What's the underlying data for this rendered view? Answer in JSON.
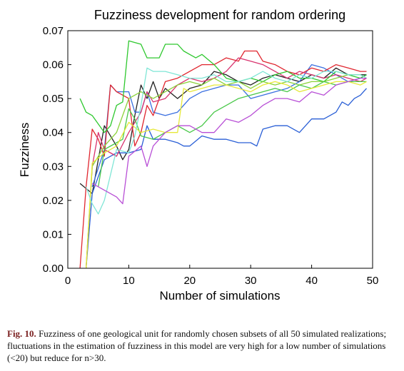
{
  "chart_data": {
    "type": "line",
    "title": "Fuzziness development for random ordering",
    "xlabel": "Number of simulations",
    "ylabel": "Fuzziness",
    "xlim": [
      0,
      50
    ],
    "ylim": [
      0,
      0.07
    ],
    "x_ticks": [
      "0",
      "10",
      "20",
      "30",
      "40",
      "50"
    ],
    "y_ticks": [
      "0.00",
      "0.01",
      "0.02",
      "0.03",
      "0.04",
      "0.05",
      "0.06",
      "0.07"
    ],
    "grid": false,
    "legend": false,
    "series": [
      {
        "color": "#222222",
        "points": [
          [
            2,
            0.025
          ],
          [
            4,
            0.022
          ],
          [
            6,
            0.042
          ],
          [
            8,
            0.036
          ],
          [
            9,
            0.032
          ],
          [
            10,
            0.035
          ],
          [
            11,
            0.045
          ],
          [
            12,
            0.054
          ],
          [
            13,
            0.05
          ],
          [
            14,
            0.055
          ],
          [
            15,
            0.05
          ],
          [
            16,
            0.053
          ],
          [
            18,
            0.05
          ],
          [
            20,
            0.053
          ],
          [
            22,
            0.054
          ],
          [
            24,
            0.058
          ],
          [
            26,
            0.057
          ],
          [
            28,
            0.055
          ],
          [
            30,
            0.054
          ],
          [
            32,
            0.056
          ],
          [
            34,
            0.057
          ],
          [
            36,
            0.056
          ],
          [
            38,
            0.055
          ],
          [
            40,
            0.057
          ],
          [
            42,
            0.056
          ],
          [
            44,
            0.059
          ],
          [
            46,
            0.057
          ],
          [
            48,
            0.057
          ],
          [
            49,
            0.057
          ]
        ]
      },
      {
        "color": "#2a5fd6",
        "points": [
          [
            3,
            0
          ],
          [
            4,
            0.022
          ],
          [
            6,
            0.032
          ],
          [
            8,
            0.034
          ],
          [
            10,
            0.034
          ],
          [
            12,
            0.035
          ],
          [
            13,
            0.042
          ],
          [
            14,
            0.038
          ],
          [
            16,
            0.038
          ],
          [
            18,
            0.037
          ],
          [
            19,
            0.036
          ],
          [
            20,
            0.036
          ],
          [
            22,
            0.039
          ],
          [
            24,
            0.038
          ],
          [
            26,
            0.038
          ],
          [
            28,
            0.037
          ],
          [
            30,
            0.037
          ],
          [
            31,
            0.036
          ],
          [
            32,
            0.041
          ],
          [
            34,
            0.042
          ],
          [
            36,
            0.042
          ],
          [
            38,
            0.04
          ],
          [
            40,
            0.044
          ],
          [
            42,
            0.044
          ],
          [
            44,
            0.046
          ],
          [
            45,
            0.049
          ],
          [
            46,
            0.048
          ],
          [
            47,
            0.05
          ],
          [
            48,
            0.051
          ],
          [
            49,
            0.053
          ]
        ]
      },
      {
        "color": "#3a6fe0",
        "points": [
          [
            4,
            0.024
          ],
          [
            6,
            0.035
          ],
          [
            7,
            0.054
          ],
          [
            8,
            0.052
          ],
          [
            10,
            0.052
          ],
          [
            11,
            0.046
          ],
          [
            12,
            0.046
          ],
          [
            13,
            0.052
          ],
          [
            14,
            0.046
          ],
          [
            16,
            0.045
          ],
          [
            18,
            0.046
          ],
          [
            20,
            0.05
          ],
          [
            22,
            0.052
          ],
          [
            24,
            0.053
          ],
          [
            26,
            0.054
          ],
          [
            28,
            0.054
          ],
          [
            30,
            0.05
          ],
          [
            32,
            0.051
          ],
          [
            34,
            0.052
          ],
          [
            36,
            0.053
          ],
          [
            38,
            0.055
          ],
          [
            40,
            0.06
          ],
          [
            42,
            0.059
          ],
          [
            44,
            0.057
          ],
          [
            46,
            0.055
          ],
          [
            48,
            0.056
          ],
          [
            49,
            0.057
          ]
        ]
      },
      {
        "color": "#e0262f",
        "points": [
          [
            2,
            0
          ],
          [
            3,
            0.024
          ],
          [
            4,
            0.041
          ],
          [
            5,
            0.038
          ],
          [
            6,
            0.033
          ],
          [
            7,
            0.054
          ],
          [
            8,
            0.052
          ],
          [
            10,
            0.05
          ],
          [
            11,
            0.036
          ],
          [
            12,
            0.04
          ],
          [
            13,
            0.048
          ],
          [
            14,
            0.045
          ],
          [
            16,
            0.055
          ],
          [
            18,
            0.056
          ],
          [
            20,
            0.058
          ],
          [
            22,
            0.06
          ],
          [
            24,
            0.06
          ],
          [
            26,
            0.062
          ],
          [
            28,
            0.061
          ],
          [
            29,
            0.064
          ],
          [
            31,
            0.064
          ],
          [
            32,
            0.061
          ],
          [
            34,
            0.06
          ],
          [
            36,
            0.058
          ],
          [
            38,
            0.057
          ],
          [
            40,
            0.059
          ],
          [
            42,
            0.058
          ],
          [
            44,
            0.06
          ],
          [
            46,
            0.059
          ],
          [
            48,
            0.058
          ],
          [
            49,
            0.058
          ]
        ]
      },
      {
        "color": "#d8336e",
        "points": [
          [
            3,
            0
          ],
          [
            4,
            0.03
          ],
          [
            5,
            0.04
          ],
          [
            6,
            0.035
          ],
          [
            8,
            0.033
          ],
          [
            10,
            0.04
          ],
          [
            12,
            0.046
          ],
          [
            13,
            0.052
          ],
          [
            14,
            0.049
          ],
          [
            16,
            0.05
          ],
          [
            18,
            0.054
          ],
          [
            20,
            0.056
          ],
          [
            22,
            0.055
          ],
          [
            24,
            0.056
          ],
          [
            26,
            0.058
          ],
          [
            28,
            0.062
          ],
          [
            30,
            0.061
          ],
          [
            32,
            0.06
          ],
          [
            34,
            0.058
          ],
          [
            36,
            0.056
          ],
          [
            38,
            0.058
          ],
          [
            40,
            0.057
          ],
          [
            42,
            0.056
          ],
          [
            44,
            0.057
          ],
          [
            46,
            0.056
          ],
          [
            48,
            0.055
          ],
          [
            49,
            0.056
          ]
        ]
      },
      {
        "color": "#2ec82e",
        "points": [
          [
            2,
            0.05
          ],
          [
            3,
            0.046
          ],
          [
            4,
            0.045
          ],
          [
            6,
            0.04
          ],
          [
            7,
            0.042
          ],
          [
            8,
            0.048
          ],
          [
            9,
            0.049
          ],
          [
            10,
            0.067
          ],
          [
            12,
            0.066
          ],
          [
            13,
            0.062
          ],
          [
            15,
            0.062
          ],
          [
            16,
            0.066
          ],
          [
            18,
            0.066
          ],
          [
            19,
            0.064
          ],
          [
            20,
            0.063
          ],
          [
            21,
            0.062
          ],
          [
            22,
            0.063
          ],
          [
            24,
            0.06
          ],
          [
            26,
            0.056
          ],
          [
            28,
            0.055
          ],
          [
            30,
            0.056
          ],
          [
            32,
            0.055
          ],
          [
            34,
            0.057
          ],
          [
            36,
            0.058
          ],
          [
            38,
            0.056
          ],
          [
            40,
            0.056
          ],
          [
            42,
            0.055
          ],
          [
            44,
            0.058
          ],
          [
            46,
            0.057
          ],
          [
            48,
            0.056
          ],
          [
            49,
            0.057
          ]
        ]
      },
      {
        "color": "#8bd23a",
        "points": [
          [
            3,
            0
          ],
          [
            4,
            0.03
          ],
          [
            6,
            0.036
          ],
          [
            8,
            0.04
          ],
          [
            10,
            0.05
          ],
          [
            12,
            0.052
          ],
          [
            14,
            0.05
          ],
          [
            16,
            0.052
          ],
          [
            18,
            0.054
          ],
          [
            20,
            0.055
          ],
          [
            22,
            0.054
          ],
          [
            24,
            0.056
          ],
          [
            26,
            0.054
          ],
          [
            28,
            0.055
          ],
          [
            30,
            0.053
          ],
          [
            32,
            0.055
          ],
          [
            34,
            0.054
          ],
          [
            36,
            0.055
          ],
          [
            38,
            0.054
          ],
          [
            40,
            0.055
          ],
          [
            42,
            0.055
          ],
          [
            44,
            0.056
          ],
          [
            46,
            0.057
          ],
          [
            48,
            0.057
          ],
          [
            49,
            0.056
          ]
        ]
      },
      {
        "color": "#49c849",
        "points": [
          [
            5,
            0.024
          ],
          [
            6,
            0.035
          ],
          [
            8,
            0.037
          ],
          [
            9,
            0.038
          ],
          [
            10,
            0.047
          ],
          [
            11,
            0.044
          ],
          [
            12,
            0.039
          ],
          [
            14,
            0.038
          ],
          [
            16,
            0.04
          ],
          [
            18,
            0.042
          ],
          [
            20,
            0.04
          ],
          [
            22,
            0.042
          ],
          [
            24,
            0.046
          ],
          [
            26,
            0.048
          ],
          [
            28,
            0.05
          ],
          [
            30,
            0.051
          ],
          [
            32,
            0.052
          ],
          [
            34,
            0.053
          ],
          [
            36,
            0.052
          ],
          [
            38,
            0.054
          ],
          [
            40,
            0.053
          ],
          [
            42,
            0.055
          ],
          [
            44,
            0.054
          ],
          [
            46,
            0.055
          ],
          [
            48,
            0.055
          ],
          [
            49,
            0.055
          ]
        ]
      },
      {
        "color": "#e6e838",
        "points": [
          [
            3,
            0
          ],
          [
            4,
            0.031
          ],
          [
            6,
            0.034
          ],
          [
            8,
            0.036
          ],
          [
            10,
            0.043
          ],
          [
            12,
            0.04
          ],
          [
            14,
            0.041
          ],
          [
            16,
            0.04
          ],
          [
            18,
            0.04
          ],
          [
            19,
            0.053
          ],
          [
            20,
            0.052
          ],
          [
            22,
            0.053
          ],
          [
            24,
            0.054
          ],
          [
            26,
            0.054
          ],
          [
            28,
            0.053
          ],
          [
            30,
            0.052
          ],
          [
            32,
            0.054
          ],
          [
            34,
            0.055
          ],
          [
            36,
            0.054
          ],
          [
            38,
            0.052
          ],
          [
            40,
            0.053
          ],
          [
            42,
            0.054
          ],
          [
            44,
            0.055
          ],
          [
            46,
            0.055
          ],
          [
            48,
            0.054
          ],
          [
            49,
            0.055
          ]
        ]
      },
      {
        "color": "#7fe6d6",
        "points": [
          [
            3,
            0.024
          ],
          [
            4,
            0.019
          ],
          [
            5,
            0.016
          ],
          [
            6,
            0.02
          ],
          [
            8,
            0.035
          ],
          [
            10,
            0.034
          ],
          [
            11,
            0.039
          ],
          [
            12,
            0.048
          ],
          [
            13,
            0.059
          ],
          [
            14,
            0.058
          ],
          [
            16,
            0.058
          ],
          [
            18,
            0.057
          ],
          [
            20,
            0.056
          ],
          [
            22,
            0.056
          ],
          [
            24,
            0.057
          ],
          [
            26,
            0.055
          ],
          [
            28,
            0.055
          ],
          [
            30,
            0.056
          ],
          [
            32,
            0.058
          ],
          [
            34,
            0.056
          ],
          [
            36,
            0.055
          ],
          [
            38,
            0.057
          ],
          [
            40,
            0.056
          ],
          [
            42,
            0.058
          ],
          [
            44,
            0.058
          ],
          [
            46,
            0.057
          ],
          [
            48,
            0.057
          ],
          [
            49,
            0.056
          ]
        ]
      },
      {
        "color": "#b84fd6",
        "points": [
          [
            4,
            0.025
          ],
          [
            6,
            0.023
          ],
          [
            8,
            0.021
          ],
          [
            9,
            0.019
          ],
          [
            10,
            0.033
          ],
          [
            12,
            0.036
          ],
          [
            13,
            0.03
          ],
          [
            14,
            0.036
          ],
          [
            16,
            0.04
          ],
          [
            18,
            0.042
          ],
          [
            20,
            0.042
          ],
          [
            22,
            0.04
          ],
          [
            24,
            0.04
          ],
          [
            26,
            0.044
          ],
          [
            28,
            0.043
          ],
          [
            30,
            0.045
          ],
          [
            32,
            0.048
          ],
          [
            34,
            0.05
          ],
          [
            36,
            0.05
          ],
          [
            38,
            0.049
          ],
          [
            40,
            0.052
          ],
          [
            42,
            0.051
          ],
          [
            44,
            0.054
          ],
          [
            46,
            0.055
          ],
          [
            48,
            0.056
          ],
          [
            49,
            0.056
          ]
        ]
      }
    ]
  },
  "caption": {
    "label": "Fig. 10.",
    "text": "Fuzziness of one geological unit for randomly chosen subsets of all 50 simulated realizations; fluctuations in the estimation of fuzziness in this model are very high for a low number of simulations (<20) but reduce for n>30."
  }
}
